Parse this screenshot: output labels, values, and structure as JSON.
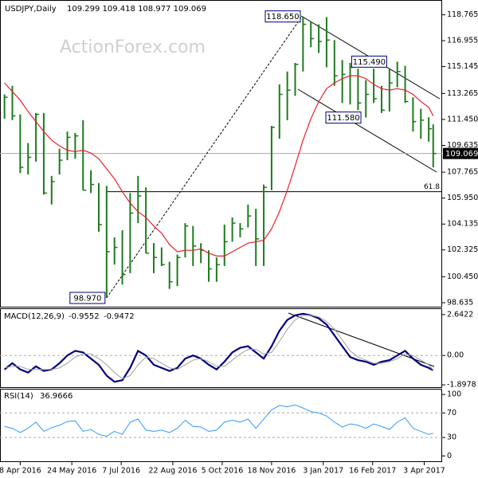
{
  "chart_data": [
    {
      "type": "ohlc",
      "title": "USDJPY,Daily",
      "subtitle": "109.299 109.418 108.977 109.069",
      "watermark": "ActionForex.com",
      "x": [
        "2016-03-25",
        "2016-04-01",
        "2016-04-08",
        "2016-04-15",
        "2016-04-22",
        "2016-04-29",
        "2016-05-06",
        "2016-05-13",
        "2016-05-20",
        "2016-05-27",
        "2016-06-03",
        "2016-06-10",
        "2016-06-17",
        "2016-06-24",
        "2016-07-01",
        "2016-07-08",
        "2016-07-15",
        "2016-07-22",
        "2016-07-29",
        "2016-08-05",
        "2016-08-12",
        "2016-08-19",
        "2016-08-26",
        "2016-09-02",
        "2016-09-09",
        "2016-09-16",
        "2016-09-23",
        "2016-09-30",
        "2016-10-07",
        "2016-10-14",
        "2016-10-21",
        "2016-10-28",
        "2016-11-04",
        "2016-11-11",
        "2016-11-18",
        "2016-11-25",
        "2016-12-02",
        "2016-12-09",
        "2016-12-16",
        "2016-12-23",
        "2016-12-30",
        "2017-01-06",
        "2017-01-13",
        "2017-01-20",
        "2017-01-27",
        "2017-02-03",
        "2017-02-10",
        "2017-02-17",
        "2017-02-24",
        "2017-03-03",
        "2017-03-10",
        "2017-03-17",
        "2017-03-24",
        "2017-03-31",
        "2017-04-07",
        "2017-04-11"
      ],
      "high": [
        113.2,
        113.8,
        111.8,
        109.8,
        111.9,
        111.9,
        107.5,
        109.4,
        110.6,
        110.5,
        111.4,
        107.9,
        107.0,
        106.8,
        103.2,
        103.7,
        106.3,
        107.5,
        106.7,
        102.8,
        102.5,
        101.5,
        102.0,
        104.2,
        104.0,
        102.8,
        102.3,
        101.8,
        104.1,
        104.6,
        104.2,
        105.5,
        105.2,
        106.9,
        111.0,
        113.9,
        114.8,
        115.4,
        118.65,
        118.3,
        118.1,
        118.6,
        117.0,
        115.6,
        115.4,
        115.0,
        114.2,
        115.0,
        113.8,
        115.0,
        115.49,
        115.2,
        113.0,
        112.2,
        111.6,
        111.1
      ],
      "low": [
        111.5,
        111.4,
        107.7,
        107.6,
        108.5,
        106.2,
        105.5,
        107.6,
        108.6,
        108.7,
        106.5,
        106.3,
        103.6,
        98.97,
        101.3,
        99.9,
        100.7,
        104.2,
        102.1,
        100.7,
        101.2,
        99.6,
        99.8,
        101.8,
        101.2,
        101.4,
        100.1,
        100.1,
        101.2,
        102.9,
        103.2,
        103.9,
        101.2,
        101.2,
        106.5,
        110.1,
        111.4,
        113.1,
        114.8,
        116.5,
        116.1,
        115.1,
        113.8,
        112.6,
        112.5,
        112.1,
        111.58,
        112.6,
        111.9,
        112.0,
        113.7,
        112.6,
        110.6,
        110.1,
        109.9,
        108.1
      ],
      "close": [
        113.0,
        111.7,
        108.1,
        108.8,
        111.8,
        106.3,
        107.1,
        108.6,
        110.2,
        110.3,
        106.5,
        106.9,
        104.1,
        102.2,
        102.5,
        100.6,
        104.9,
        106.1,
        102.1,
        101.8,
        101.3,
        100.1,
        101.8,
        104.0,
        102.6,
        102.3,
        101.0,
        101.3,
        102.9,
        104.2,
        103.8,
        104.7,
        103.1,
        106.7,
        110.9,
        113.2,
        113.5,
        115.3,
        118.1,
        117.1,
        116.9,
        117.0,
        114.5,
        114.6,
        115.1,
        112.6,
        113.2,
        112.9,
        112.1,
        114.0,
        114.8,
        112.7,
        111.3,
        111.4,
        110.8,
        109.069
      ],
      "color": "#1e7b1e",
      "ma": {
        "color": "#e8202a",
        "values": [
          114.0,
          113.4,
          112.8,
          112.0,
          111.3,
          110.6,
          110.0,
          109.6,
          109.3,
          109.2,
          109.3,
          109.1,
          108.7,
          108.0,
          107.3,
          106.4,
          105.6,
          105.0,
          104.6,
          104.0,
          103.5,
          102.7,
          102.2,
          102.3,
          102.3,
          102.4,
          102.1,
          101.9,
          101.9,
          102.2,
          102.5,
          102.8,
          102.9,
          103.0,
          103.8,
          105.0,
          106.5,
          108.2,
          110.0,
          111.5,
          112.7,
          113.6,
          114.0,
          114.3,
          114.5,
          114.5,
          114.3,
          113.9,
          113.6,
          113.5,
          113.6,
          113.5,
          113.2,
          112.7,
          112.3,
          111.7
        ]
      },
      "annotations": [
        {
          "label": "118.650",
          "value": 118.65,
          "x": "2016-12-15"
        },
        {
          "label": "115.490",
          "value": 115.49,
          "x": "2017-03-02"
        },
        {
          "label": "111.580",
          "value": 111.58,
          "x": "2017-02-07"
        },
        {
          "label": "98.970",
          "value": 98.97,
          "x": "2016-06-24"
        }
      ],
      "fib_level": {
        "label": "61.8",
        "value": 106.4
      },
      "xlim": [
        "2016-03-21",
        "2017-04-14"
      ],
      "xticks": [
        {
          "value": "2016-04-08",
          "label": "8 Apr 2016"
        },
        {
          "value": "2016-05-24",
          "label": "24 May 2016"
        },
        {
          "value": "2016-07-07",
          "label": "7 Jul 2016"
        },
        {
          "value": "2016-08-22",
          "label": "22 Aug 2016"
        },
        {
          "value": "2016-10-05",
          "label": "5 Oct 2016"
        },
        {
          "value": "2016-11-18",
          "label": "18 Nov 2016"
        },
        {
          "value": "2017-01-03",
          "label": "3 Jan 2017"
        },
        {
          "value": "2017-02-16",
          "label": "16 Feb 2017"
        },
        {
          "value": "2017-04-03",
          "label": "3 Apr 2017"
        }
      ],
      "ylim": [
        98.3,
        119.8
      ],
      "yticks": [
        118.765,
        116.955,
        115.145,
        113.265,
        {
          "value": 111.45,
          "label": "111.450"
        },
        109.635,
        107.765,
        {
          "value": 105.95,
          "label": "105.950"
        },
        104.135,
        102.325,
        {
          "value": 100.45,
          "label": "100.450"
        },
        98.635
      ]
    },
    {
      "type": "line",
      "title": "MACD(12,26,9)",
      "series": [
        {
          "color": "#000080",
          "values": [
            -0.9,
            -0.5,
            -0.9,
            -1.1,
            -0.7,
            -1.0,
            -0.9,
            -0.5,
            0.0,
            0.3,
            0.2,
            -0.2,
            -0.6,
            -1.3,
            -1.7,
            -1.6,
            -0.8,
            0.3,
            0.0,
            -0.6,
            -0.8,
            -1.0,
            -0.8,
            -0.2,
            0.0,
            -0.2,
            -0.6,
            -0.9,
            -0.4,
            0.2,
            0.5,
            0.6,
            0.2,
            -0.2,
            0.6,
            1.6,
            2.3,
            2.6,
            2.7,
            2.6,
            2.4,
            2.0,
            1.3,
            0.6,
            -0.1,
            -0.3,
            -0.4,
            -0.6,
            -0.4,
            -0.3,
            0.0,
            0.3,
            -0.2,
            -0.6,
            -0.8,
            -0.9552
          ]
        },
        {
          "color": "#a0a0a0",
          "values": [
            -0.8,
            -0.7,
            -0.7,
            -0.9,
            -0.9,
            -0.9,
            -0.9,
            -0.8,
            -0.5,
            -0.1,
            0.1,
            0.1,
            -0.2,
            -0.6,
            -1.1,
            -1.5,
            -1.3,
            -0.6,
            -0.1,
            -0.2,
            -0.5,
            -0.8,
            -0.9,
            -0.6,
            -0.3,
            -0.2,
            -0.4,
            -0.7,
            -0.7,
            -0.3,
            0.1,
            0.4,
            0.4,
            0.1,
            0.2,
            0.9,
            1.7,
            2.3,
            2.6,
            2.6,
            2.5,
            2.2,
            1.7,
            1.0,
            0.3,
            -0.1,
            -0.3,
            -0.5,
            -0.5,
            -0.4,
            -0.2,
            0.1,
            0.0,
            -0.3,
            -0.6,
            -0.9472
          ]
        }
      ],
      "ylim": [
        -2.1,
        3.0
      ],
      "yticks": [
        2.6422,
        {
          "value": 0,
          "label": "0.00"
        },
        -1.8978
      ]
    },
    {
      "type": "line",
      "title": "RSI(14)",
      "series": [
        {
          "color": "#3399ff",
          "values": [
            48,
            45,
            38,
            45,
            55,
            40,
            46,
            50,
            56,
            57,
            40,
            43,
            35,
            32,
            40,
            35,
            55,
            60,
            42,
            40,
            42,
            38,
            45,
            58,
            48,
            47,
            40,
            42,
            55,
            58,
            55,
            60,
            45,
            60,
            75,
            82,
            80,
            83,
            78,
            72,
            70,
            65,
            55,
            47,
            52,
            50,
            45,
            52,
            48,
            43,
            55,
            62,
            45,
            40,
            35,
            36.9666
          ]
        }
      ],
      "ylim": [
        -10,
        108
      ],
      "yticks": [
        100,
        70,
        30,
        0
      ]
    }
  ]
}
